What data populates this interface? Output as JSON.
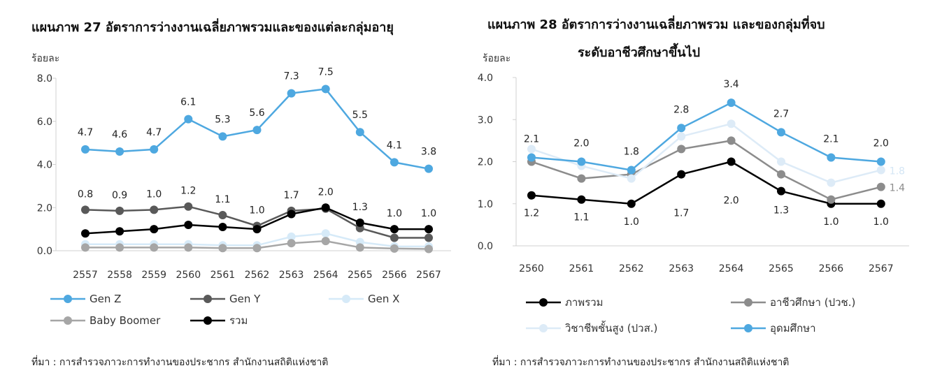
{
  "chart_data": [
    {
      "type": "line",
      "title": "แผนภาพ  27  อัตราการว่างงานเฉลี่ยภาพรวมและของแต่ละกลุ่มอายุ",
      "ylabel": "ร้อยละ",
      "ylim": [
        0,
        8
      ],
      "yticks": [
        "0.0",
        "2.0",
        "4.0",
        "6.0",
        "8.0"
      ],
      "categories": [
        "2557",
        "2558",
        "2559",
        "2560",
        "2561",
        "2562",
        "2563",
        "2564",
        "2565",
        "2566",
        "2567"
      ],
      "series": [
        {
          "name": "Gen Z",
          "color": "#4EA8E0",
          "values": [
            4.7,
            4.6,
            4.7,
            6.1,
            5.3,
            5.6,
            7.3,
            7.5,
            5.5,
            4.1,
            3.8
          ],
          "labels": "above"
        },
        {
          "name": "Gen Y",
          "color": "#595959",
          "values": [
            1.9,
            1.85,
            1.9,
            2.05,
            1.65,
            1.15,
            1.85,
            1.95,
            1.05,
            0.6,
            0.6
          ]
        },
        {
          "name": "Gen X",
          "color": "#D6EAF8",
          "values": [
            0.3,
            0.3,
            0.3,
            0.3,
            0.25,
            0.25,
            0.65,
            0.8,
            0.4,
            0.2,
            0.2
          ]
        },
        {
          "name": "Baby Boomer",
          "color": "#A6A6A6",
          "values": [
            0.15,
            0.15,
            0.15,
            0.15,
            0.12,
            0.12,
            0.35,
            0.45,
            0.15,
            0.1,
            0.08
          ]
        },
        {
          "name": "รวม",
          "color": "#000000",
          "values": [
            0.8,
            0.9,
            1.0,
            1.2,
            1.1,
            1.0,
            1.7,
            2.0,
            1.3,
            1.0,
            1.0
          ],
          "labels": "above"
        }
      ],
      "source": "ที่มา : การสำรวจภาวะการทำงานของประชากร สำนักงานสถิติแห่งชาติ",
      "grid": false,
      "legend": "bottom"
    },
    {
      "type": "line",
      "title": "แผนภาพ  28  อัตราการว่างงานเฉลี่ยภาพรวม และของกลุ่มที่จบ",
      "title_line2": "ระดับอาชีวศึกษาขึ้นไป",
      "ylabel": "ร้อยละ",
      "ylim": [
        0,
        4
      ],
      "yticks": [
        "0.0",
        "1.0",
        "2.0",
        "3.0",
        "4.0"
      ],
      "categories": [
        "2560",
        "2561",
        "2562",
        "2563",
        "2564",
        "2565",
        "2566",
        "2567"
      ],
      "series": [
        {
          "name": "ภาพรวม",
          "color": "#000000",
          "values": [
            1.2,
            1.1,
            1.0,
            1.7,
            2.0,
            1.3,
            1.0,
            1.0
          ],
          "labels": "below"
        },
        {
          "name": "อาชีวศึกษา (ปวช.)",
          "color": "#8C8C8C",
          "values": [
            2.0,
            1.6,
            1.7,
            2.3,
            2.5,
            1.7,
            1.1,
            1.4
          ],
          "labels": "last"
        },
        {
          "name": "วิชาชีพชั้นสูง (ปวส.)",
          "color": "#DDEBF7",
          "values": [
            2.3,
            1.9,
            1.6,
            2.6,
            2.9,
            2.0,
            1.5,
            1.8
          ],
          "labels": "last"
        },
        {
          "name": "อุดมศึกษา",
          "color": "#4EA8E0",
          "values": [
            2.1,
            2.0,
            1.8,
            2.8,
            3.4,
            2.7,
            2.1,
            2.0
          ],
          "labels": "above"
        }
      ],
      "source": "ที่มา : การสำรวจภาวะการทำงานของประชากร สำนักงานสถิติแห่งชาติ",
      "grid": false,
      "legend": "bottom"
    }
  ]
}
